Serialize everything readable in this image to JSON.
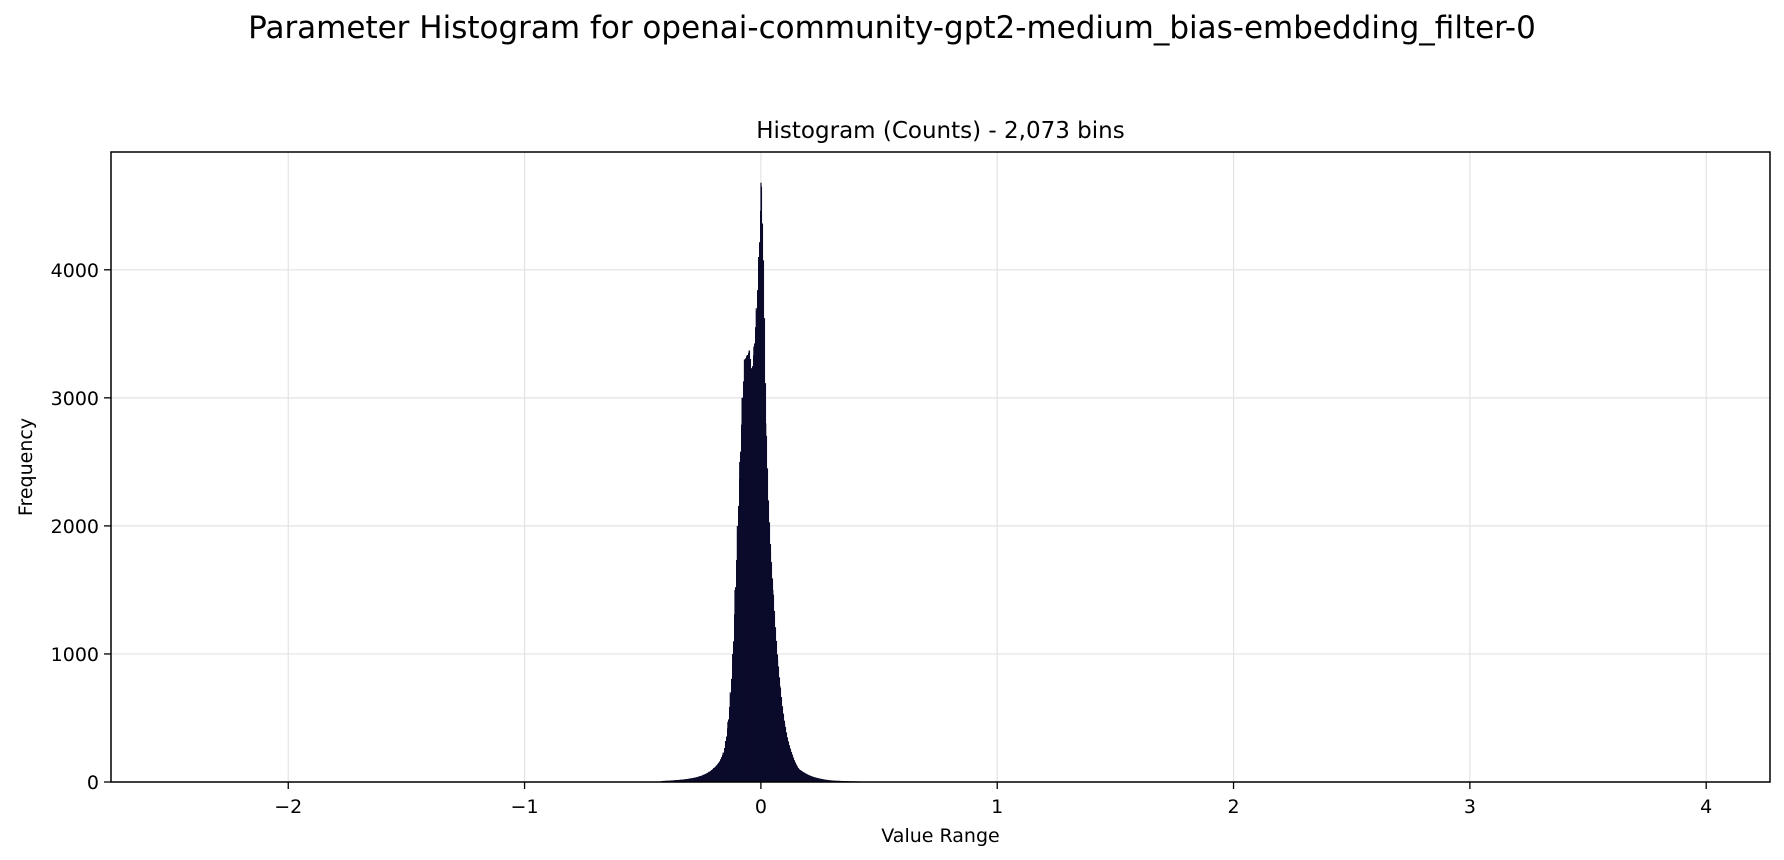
{
  "suptitle": "Parameter Histogram for openai-community-gpt2-medium_bias-embedding_filter-0",
  "chart_data": {
    "type": "bar",
    "title": "Histogram (Counts) - 2,073 bins",
    "xlabel": "Value Range",
    "ylabel": "Frequency",
    "xlim": [
      -2.75,
      4.27
    ],
    "ylim": [
      0,
      4920
    ],
    "xticks": [
      -2,
      -1,
      0,
      1,
      2,
      3,
      4
    ],
    "xtick_labels": [
      "−2",
      "−1",
      "0",
      "1",
      "2",
      "3",
      "4"
    ],
    "yticks": [
      0,
      1000,
      2000,
      3000,
      4000
    ],
    "ytick_labels": [
      "0",
      "1000",
      "2000",
      "3000",
      "4000"
    ],
    "grid": true,
    "bar_color": "#0b0a2a",
    "bins": [
      {
        "x": -0.42,
        "count": 8
      },
      {
        "x": -0.4,
        "count": 10
      },
      {
        "x": -0.38,
        "count": 12
      },
      {
        "x": -0.36,
        "count": 15
      },
      {
        "x": -0.34,
        "count": 18
      },
      {
        "x": -0.32,
        "count": 22
      },
      {
        "x": -0.3,
        "count": 28
      },
      {
        "x": -0.28,
        "count": 35
      },
      {
        "x": -0.26,
        "count": 45
      },
      {
        "x": -0.24,
        "count": 60
      },
      {
        "x": -0.22,
        "count": 80
      },
      {
        "x": -0.2,
        "count": 110
      },
      {
        "x": -0.18,
        "count": 150
      },
      {
        "x": -0.16,
        "count": 230
      },
      {
        "x": -0.15,
        "count": 320
      },
      {
        "x": -0.14,
        "count": 470
      },
      {
        "x": -0.13,
        "count": 700
      },
      {
        "x": -0.12,
        "count": 1000
      },
      {
        "x": -0.11,
        "count": 1500
      },
      {
        "x": -0.1,
        "count": 2000
      },
      {
        "x": -0.09,
        "count": 2500
      },
      {
        "x": -0.08,
        "count": 3000
      },
      {
        "x": -0.07,
        "count": 3300
      },
      {
        "x": -0.06,
        "count": 3330
      },
      {
        "x": -0.05,
        "count": 3370
      },
      {
        "x": -0.04,
        "count": 3200
      },
      {
        "x": -0.03,
        "count": 3400
      },
      {
        "x": -0.02,
        "count": 3700
      },
      {
        "x": -0.01,
        "count": 4100
      },
      {
        "x": 0.0,
        "count": 4680
      },
      {
        "x": 0.01,
        "count": 4000
      },
      {
        "x": 0.02,
        "count": 2800
      },
      {
        "x": 0.03,
        "count": 2200
      },
      {
        "x": 0.04,
        "count": 1800
      },
      {
        "x": 0.05,
        "count": 1500
      },
      {
        "x": 0.06,
        "count": 1200
      },
      {
        "x": 0.07,
        "count": 950
      },
      {
        "x": 0.08,
        "count": 750
      },
      {
        "x": 0.09,
        "count": 580
      },
      {
        "x": 0.1,
        "count": 450
      },
      {
        "x": 0.11,
        "count": 350
      },
      {
        "x": 0.12,
        "count": 280
      },
      {
        "x": 0.13,
        "count": 220
      },
      {
        "x": 0.14,
        "count": 170
      },
      {
        "x": 0.15,
        "count": 130
      },
      {
        "x": 0.16,
        "count": 100
      },
      {
        "x": 0.18,
        "count": 75
      },
      {
        "x": 0.2,
        "count": 55
      },
      {
        "x": 0.22,
        "count": 40
      },
      {
        "x": 0.24,
        "count": 30
      },
      {
        "x": 0.26,
        "count": 22
      },
      {
        "x": 0.28,
        "count": 16
      },
      {
        "x": 0.3,
        "count": 12
      },
      {
        "x": 0.33,
        "count": 9
      },
      {
        "x": 0.36,
        "count": 7
      },
      {
        "x": 0.4,
        "count": 5
      },
      {
        "x": 0.45,
        "count": 3
      },
      {
        "x": 0.5,
        "count": 2
      }
    ]
  }
}
